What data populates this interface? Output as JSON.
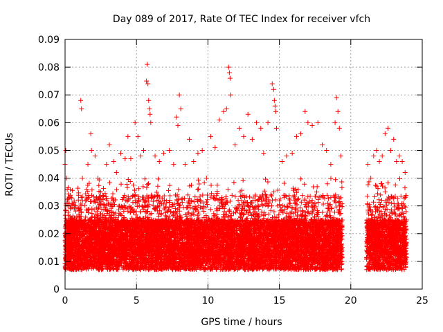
{
  "chart_data": {
    "type": "scatter",
    "title": "Day 089 of 2017, Rate Of TEC Index for receiver vfch",
    "xlabel": "GPS time / hours",
    "ylabel": "ROTI / TECUs",
    "xlim": [
      0,
      25
    ],
    "ylim": [
      0,
      0.09
    ],
    "x_ticks": [
      0,
      5,
      10,
      15,
      20,
      25
    ],
    "x_tick_labels": [
      "0",
      "5",
      "10",
      "15",
      "20",
      "25"
    ],
    "y_ticks": [
      0,
      0.01,
      0.02,
      0.03,
      0.04,
      0.05,
      0.06,
      0.07,
      0.08,
      0.09
    ],
    "y_tick_labels": [
      "0",
      "0.01",
      "0.02",
      "0.03",
      "0.04",
      "0.05",
      "0.06",
      "0.07",
      "0.08",
      "0.09"
    ],
    "grid": true,
    "marker": "plus",
    "color": "#ff0000",
    "series": [
      {
        "x": [
          0.0,
          0.05,
          0.1,
          0.15,
          0.2,
          0.25,
          0.3,
          1.1,
          1.15,
          1.6,
          1.8,
          1.85,
          2.1,
          2.3,
          2.5,
          2.9,
          3.1,
          3.4,
          3.6,
          3.9,
          4.2,
          4.4,
          4.6,
          4.9,
          5.1,
          5.3,
          5.5,
          5.7,
          5.75,
          5.8,
          5.85,
          5.9,
          5.95,
          6.0,
          6.3,
          6.6,
          6.9,
          7.3,
          7.6,
          7.8,
          7.9,
          8.0,
          8.1,
          8.4,
          8.7,
          9.0,
          9.3,
          9.6,
          9.9,
          10.2,
          10.5,
          10.8,
          11.1,
          11.3,
          11.45,
          11.5,
          11.55,
          11.6,
          11.9,
          12.2,
          12.5,
          12.8,
          13.1,
          13.4,
          13.7,
          13.9,
          14.2,
          14.5,
          14.6,
          14.65,
          14.7,
          14.75,
          14.8,
          15.2,
          15.5,
          15.9,
          16.2,
          16.5,
          16.8,
          17.0,
          17.3,
          17.7,
          18.0,
          18.3,
          18.6,
          18.9,
          19.0,
          19.1,
          19.2,
          19.3,
          21.2,
          21.4,
          21.6,
          21.8,
          22.0,
          22.2,
          22.4,
          22.6,
          22.8,
          23.0,
          23.2,
          23.4,
          23.6,
          23.8
        ],
        "y": [
          0.045,
          0.05,
          0.04,
          0.036,
          0.03,
          0.025,
          0.02,
          0.068,
          0.065,
          0.045,
          0.056,
          0.05,
          0.048,
          0.04,
          0.035,
          0.045,
          0.052,
          0.046,
          0.042,
          0.049,
          0.047,
          0.055,
          0.047,
          0.06,
          0.055,
          0.048,
          0.05,
          0.075,
          0.081,
          0.074,
          0.068,
          0.065,
          0.063,
          0.06,
          0.048,
          0.046,
          0.049,
          0.05,
          0.045,
          0.062,
          0.059,
          0.07,
          0.065,
          0.045,
          0.054,
          0.046,
          0.049,
          0.05,
          0.04,
          0.055,
          0.051,
          0.061,
          0.064,
          0.065,
          0.08,
          0.078,
          0.076,
          0.07,
          0.052,
          0.058,
          0.055,
          0.063,
          0.054,
          0.06,
          0.058,
          0.049,
          0.06,
          0.074,
          0.072,
          0.068,
          0.066,
          0.064,
          0.058,
          0.046,
          0.048,
          0.049,
          0.055,
          0.056,
          0.064,
          0.06,
          0.059,
          0.06,
          0.052,
          0.05,
          0.045,
          0.06,
          0.069,
          0.064,
          0.058,
          0.048,
          0.045,
          0.04,
          0.048,
          0.05,
          0.046,
          0.048,
          0.056,
          0.058,
          0.05,
          0.054,
          0.046,
          0.048,
          0.046,
          0.042
        ]
      }
    ]
  }
}
